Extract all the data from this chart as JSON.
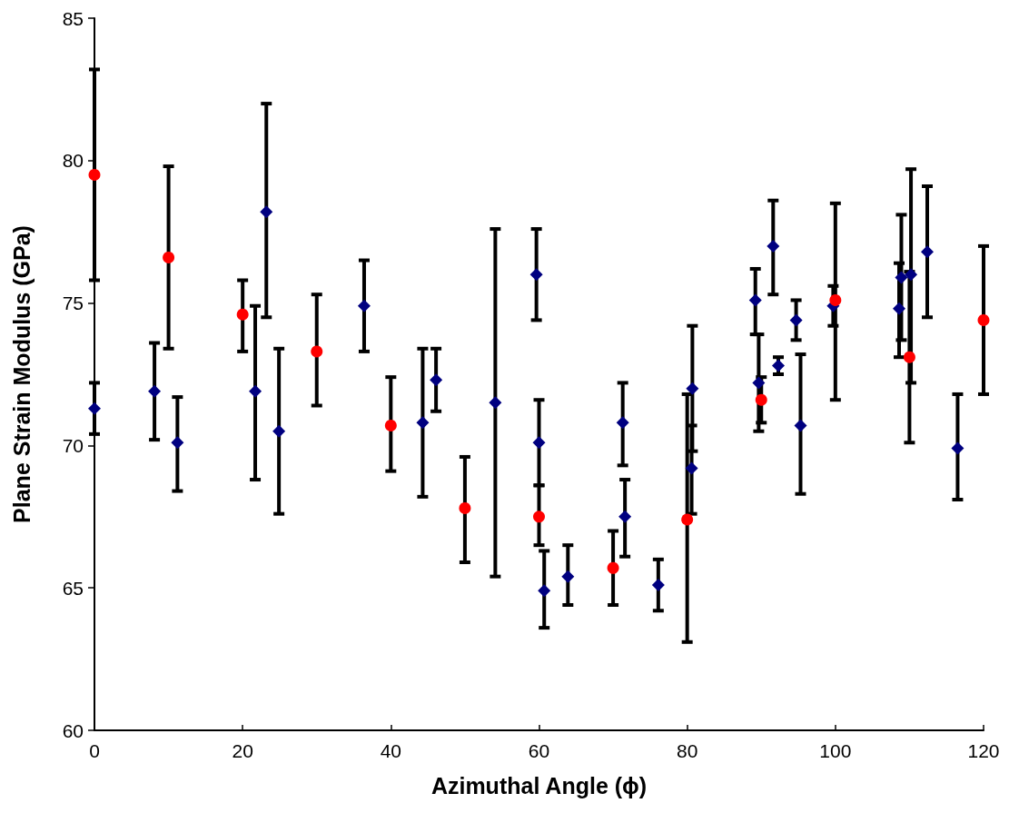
{
  "chart_data": {
    "type": "scatter",
    "xlabel": "Azimuthal Angle (ϕ)",
    "ylabel": "Plane Strain Modulus (GPa)",
    "xlim": [
      0,
      120
    ],
    "xticks": [
      0,
      20,
      40,
      60,
      80,
      100,
      120
    ],
    "ylim": [
      60,
      85
    ],
    "yticks": [
      60,
      65,
      70,
      75,
      80,
      85
    ],
    "grid": false,
    "series": [
      {
        "color": "#000080",
        "marker": "diamond",
        "x": [
          0,
          8.1,
          11.2,
          21.7,
          23.2,
          24.9,
          36.4,
          44.3,
          46.1,
          54.1,
          59.65,
          60.0,
          60.7,
          63.9,
          71.3,
          71.6,
          76.1,
          80.6,
          80.7,
          89.2,
          89.65,
          91.6,
          92.3,
          94.7,
          95.3,
          99.7,
          108.6,
          108.9,
          110.2,
          112.4,
          116.5
        ],
        "values": [
          71.3,
          71.9,
          70.1,
          71.9,
          78.2,
          70.5,
          74.9,
          70.8,
          72.3,
          71.5,
          76.0,
          70.1,
          64.9,
          65.4,
          70.8,
          67.5,
          65.1,
          69.2,
          72.0,
          75.1,
          72.2,
          77.0,
          72.8,
          74.4,
          70.7,
          74.9,
          74.8,
          75.9,
          76.0,
          76.8,
          69.9
        ],
        "errors": [
          [
            70.4,
            72.2
          ],
          [
            70.2,
            73.6
          ],
          [
            68.4,
            71.7
          ],
          [
            68.8,
            74.9
          ],
          [
            74.5,
            82.0
          ],
          [
            67.6,
            73.4
          ],
          [
            73.3,
            76.5
          ],
          [
            68.2,
            73.4
          ],
          [
            71.2,
            73.4
          ],
          [
            65.4,
            77.6
          ],
          [
            74.4,
            77.6
          ],
          [
            68.6,
            71.6
          ],
          [
            63.6,
            66.3
          ],
          [
            64.4,
            66.5
          ],
          [
            69.3,
            72.2
          ],
          [
            66.1,
            68.8
          ],
          [
            64.2,
            66.0
          ],
          [
            67.6,
            70.7
          ],
          [
            69.8,
            74.2
          ],
          [
            73.9,
            76.2
          ],
          [
            70.5,
            73.9
          ],
          [
            75.3,
            78.6
          ],
          [
            72.5,
            73.1
          ],
          [
            73.7,
            75.1
          ],
          [
            68.3,
            73.2
          ],
          [
            74.2,
            75.6
          ],
          [
            73.1,
            76.4
          ],
          [
            73.7,
            78.1
          ],
          [
            72.2,
            79.7
          ],
          [
            74.5,
            79.1
          ],
          [
            68.1,
            71.8
          ]
        ]
      },
      {
        "color": "#ff0000",
        "marker": "circle",
        "x": [
          0,
          10,
          20,
          30,
          40,
          50,
          60,
          70,
          80,
          90,
          100,
          110,
          120
        ],
        "values": [
          79.5,
          76.6,
          74.6,
          73.3,
          70.7,
          67.8,
          67.5,
          65.7,
          67.4,
          71.6,
          75.1,
          73.1,
          74.4
        ],
        "errors": [
          [
            75.8,
            83.2
          ],
          [
            73.4,
            79.8
          ],
          [
            73.3,
            75.8
          ],
          [
            71.4,
            75.3
          ],
          [
            69.1,
            72.4
          ],
          [
            65.9,
            69.6
          ],
          [
            66.5,
            68.6
          ],
          [
            64.4,
            67.0
          ],
          [
            63.1,
            71.8
          ],
          [
            70.8,
            72.4
          ],
          [
            71.6,
            78.5
          ],
          [
            70.1,
            76.1
          ],
          [
            71.8,
            77.0
          ]
        ]
      }
    ]
  }
}
